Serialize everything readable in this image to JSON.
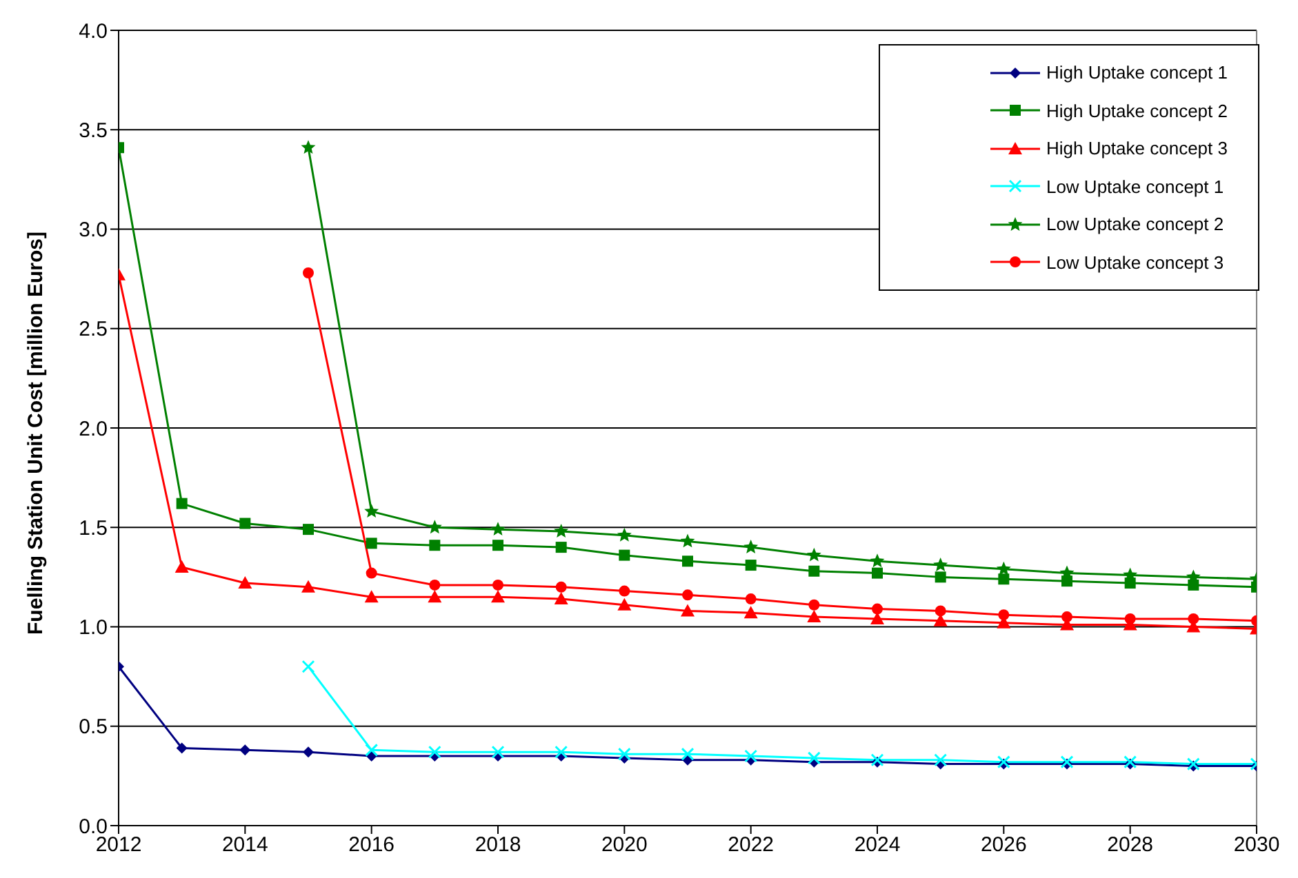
{
  "chart_data": {
    "type": "line",
    "ylabel": "Fuelling Station Unit Cost [million Euros]",
    "x": [
      2012,
      2013,
      2014,
      2015,
      2016,
      2017,
      2018,
      2019,
      2020,
      2021,
      2022,
      2023,
      2024,
      2025,
      2026,
      2027,
      2028,
      2029,
      2030
    ],
    "xlim": [
      2012,
      2030
    ],
    "xticks": [
      2012,
      2014,
      2016,
      2018,
      2020,
      2022,
      2024,
      2026,
      2028,
      2030
    ],
    "ylim": [
      0,
      4
    ],
    "yticks": [
      {
        "value": 0,
        "label": "0.0"
      },
      {
        "value": 0.5,
        "label": "0.5"
      },
      {
        "value": 1,
        "label": "1.0"
      },
      {
        "value": 1.5,
        "label": "1.5"
      },
      {
        "value": 2,
        "label": "2.0"
      },
      {
        "value": 2.5,
        "label": "2.5"
      },
      {
        "value": 3,
        "label": "3.0"
      },
      {
        "value": 3.5,
        "label": "3.5"
      },
      {
        "value": 4,
        "label": "4.0"
      }
    ],
    "grid": "y",
    "legend": "top right",
    "line_style": "solid",
    "series": [
      {
        "name": "High Uptake concept 1",
        "color": "#000080",
        "marker": "diamond",
        "values": [
          0.8,
          0.39,
          0.38,
          0.37,
          0.35,
          0.35,
          0.35,
          0.35,
          0.34,
          0.33,
          0.33,
          0.32,
          0.32,
          0.31,
          0.31,
          0.31,
          0.31,
          0.3,
          0.3
        ]
      },
      {
        "name": "High Uptake concept 2",
        "color": "#008000",
        "marker": "square",
        "values": [
          3.41,
          1.62,
          1.52,
          1.49,
          1.42,
          1.41,
          1.41,
          1.4,
          1.36,
          1.33,
          1.31,
          1.28,
          1.27,
          1.25,
          1.24,
          1.23,
          1.22,
          1.21,
          1.2
        ]
      },
      {
        "name": "High Uptake concept 3",
        "color": "#ff0000",
        "marker": "triangle",
        "values": [
          2.77,
          1.3,
          1.22,
          1.2,
          1.15,
          1.15,
          1.15,
          1.14,
          1.11,
          1.08,
          1.07,
          1.05,
          1.04,
          1.03,
          1.02,
          1.01,
          1.01,
          1.0,
          0.99
        ]
      },
      {
        "name": "Low Uptake concept 1",
        "color": "#00ffff",
        "marker": "cross",
        "values": [
          null,
          null,
          null,
          0.8,
          0.38,
          0.37,
          0.37,
          0.37,
          0.36,
          0.36,
          0.35,
          0.34,
          0.33,
          0.33,
          0.32,
          0.32,
          0.32,
          0.31,
          0.31
        ]
      },
      {
        "name": "Low Uptake concept 2",
        "color": "#008000",
        "marker": "star",
        "values": [
          null,
          null,
          null,
          3.41,
          1.58,
          1.5,
          1.49,
          1.48,
          1.46,
          1.43,
          1.4,
          1.36,
          1.33,
          1.31,
          1.29,
          1.27,
          1.26,
          1.25,
          1.24
        ]
      },
      {
        "name": "Low Uptake concept 3",
        "color": "#ff0000",
        "marker": "circle",
        "values": [
          null,
          null,
          null,
          2.78,
          1.27,
          1.21,
          1.21,
          1.2,
          1.18,
          1.16,
          1.14,
          1.11,
          1.09,
          1.08,
          1.06,
          1.05,
          1.04,
          1.04,
          1.03
        ]
      }
    ]
  }
}
